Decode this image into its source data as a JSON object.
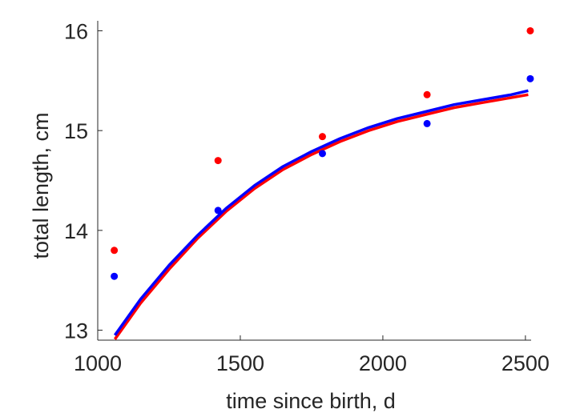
{
  "chart_data": {
    "type": "scatter",
    "title": "",
    "xlabel": "time since birth, d",
    "ylabel": "total length, cm",
    "xlim": [
      1000,
      2520
    ],
    "ylim": [
      12.9,
      16.1
    ],
    "xticks": [
      1000,
      1500,
      2000,
      2500
    ],
    "yticks": [
      13,
      14,
      15,
      16
    ],
    "grid": false,
    "legend": "none",
    "series": [
      {
        "color": "#ff0000",
        "points": {
          "x": [
            1058,
            1422,
            1788,
            2155,
            2517
          ],
          "y": [
            13.8,
            14.7,
            14.94,
            15.36,
            16.0
          ]
        },
        "fit": {
          "x": [
            1060,
            1150,
            1250,
            1350,
            1450,
            1550,
            1650,
            1750,
            1850,
            1950,
            2050,
            2150,
            2250,
            2350,
            2450,
            2510
          ],
          "y": [
            12.91,
            13.27,
            13.61,
            13.92,
            14.19,
            14.42,
            14.61,
            14.76,
            14.89,
            15.0,
            15.09,
            15.16,
            15.23,
            15.28,
            15.33,
            15.36
          ]
        }
      },
      {
        "color": "#0000ff",
        "points": {
          "x": [
            1058,
            1422,
            1788,
            2155,
            2517
          ],
          "y": [
            13.54,
            14.2,
            14.77,
            15.07,
            15.52
          ]
        },
        "fit": {
          "x": [
            1060,
            1150,
            1250,
            1350,
            1450,
            1550,
            1650,
            1750,
            1850,
            1950,
            2050,
            2150,
            2250,
            2350,
            2450,
            2510
          ],
          "y": [
            12.95,
            13.31,
            13.65,
            13.95,
            14.22,
            14.45,
            14.64,
            14.79,
            14.92,
            15.03,
            15.12,
            15.19,
            15.26,
            15.31,
            15.36,
            15.4
          ]
        }
      }
    ]
  }
}
